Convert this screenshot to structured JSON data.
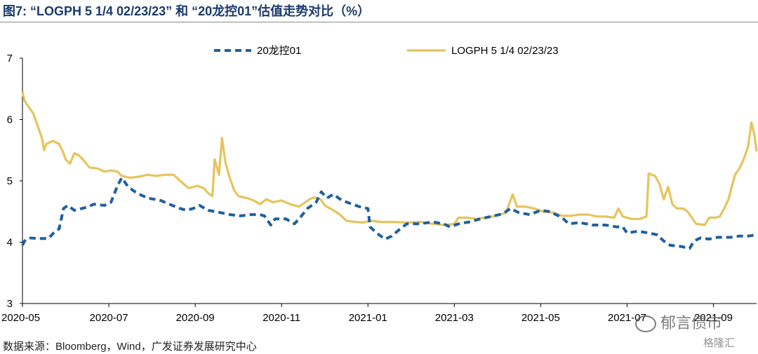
{
  "title": "图7:   “LOGPH 5 1/4 02/23/23” 和 “20龙控01”估值走势对比（%）",
  "source": "数据来源：Bloomberg，Wind，广发证券发展研究中心",
  "watermark": "郁言债市",
  "watermark2": "格隆汇",
  "colors": {
    "series1": "#1f5fa0",
    "series2": "#e6c45c",
    "axis": "#000000",
    "title": "#1a3a6b"
  },
  "chart_data": {
    "type": "line",
    "title": "“LOGPH 5 1/4 02/23/23” 和 “20龙控01”估值走势对比（%）",
    "xlabel": "",
    "ylabel": "",
    "ylim": [
      3,
      7
    ],
    "yticks": [
      "3",
      "4",
      "5",
      "6",
      "7"
    ],
    "xlim": [
      0,
      17
    ],
    "xticks": [
      {
        "label": "2020-05",
        "x": 0
      },
      {
        "label": "2020-07",
        "x": 2
      },
      {
        "label": "2020-09",
        "x": 4
      },
      {
        "label": "2020-11",
        "x": 6
      },
      {
        "label": "2021-01",
        "x": 8
      },
      {
        "label": "2021-03",
        "x": 10
      },
      {
        "label": "2021-05",
        "x": 12
      },
      {
        "label": "2021-07",
        "x": 14
      },
      {
        "label": "2021-09",
        "x": 16
      }
    ],
    "grid": false,
    "legend": "top-center",
    "series": [
      {
        "name": "20龙控01",
        "style": "dashed",
        "points": [
          [
            0.0,
            3.95
          ],
          [
            0.05,
            4.02
          ],
          [
            0.15,
            4.07
          ],
          [
            0.4,
            4.06
          ],
          [
            0.6,
            4.06
          ],
          [
            0.72,
            4.15
          ],
          [
            0.85,
            4.22
          ],
          [
            0.95,
            4.55
          ],
          [
            1.05,
            4.6
          ],
          [
            1.2,
            4.52
          ],
          [
            1.5,
            4.57
          ],
          [
            1.65,
            4.62
          ],
          [
            1.9,
            4.6
          ],
          [
            2.05,
            4.65
          ],
          [
            2.2,
            4.92
          ],
          [
            2.3,
            5.05
          ],
          [
            2.45,
            4.9
          ],
          [
            2.65,
            4.8
          ],
          [
            2.9,
            4.72
          ],
          [
            3.2,
            4.68
          ],
          [
            3.4,
            4.62
          ],
          [
            3.65,
            4.55
          ],
          [
            3.8,
            4.52
          ],
          [
            3.95,
            4.55
          ],
          [
            4.1,
            4.6
          ],
          [
            4.3,
            4.52
          ],
          [
            4.6,
            4.48
          ],
          [
            4.8,
            4.45
          ],
          [
            5.05,
            4.43
          ],
          [
            5.3,
            4.45
          ],
          [
            5.5,
            4.45
          ],
          [
            5.6,
            4.43
          ],
          [
            5.75,
            4.28
          ],
          [
            5.85,
            4.38
          ],
          [
            6.1,
            4.38
          ],
          [
            6.3,
            4.3
          ],
          [
            6.45,
            4.42
          ],
          [
            6.6,
            4.55
          ],
          [
            6.8,
            4.65
          ],
          [
            6.92,
            4.82
          ],
          [
            7.05,
            4.72
          ],
          [
            7.2,
            4.78
          ],
          [
            7.4,
            4.68
          ],
          [
            7.6,
            4.63
          ],
          [
            7.8,
            4.58
          ],
          [
            8.0,
            4.55
          ],
          [
            8.05,
            4.25
          ],
          [
            8.2,
            4.15
          ],
          [
            8.4,
            4.05
          ],
          [
            8.55,
            4.1
          ],
          [
            8.75,
            4.22
          ],
          [
            8.9,
            4.3
          ],
          [
            9.2,
            4.3
          ],
          [
            9.5,
            4.33
          ],
          [
            9.75,
            4.3
          ],
          [
            9.9,
            4.25
          ],
          [
            10.1,
            4.3
          ],
          [
            10.35,
            4.33
          ],
          [
            10.6,
            4.38
          ],
          [
            10.85,
            4.42
          ],
          [
            11.05,
            4.45
          ],
          [
            11.2,
            4.5
          ],
          [
            11.3,
            4.55
          ],
          [
            11.5,
            4.48
          ],
          [
            11.75,
            4.45
          ],
          [
            12.0,
            4.52
          ],
          [
            12.2,
            4.5
          ],
          [
            12.35,
            4.45
          ],
          [
            12.5,
            4.4
          ],
          [
            12.65,
            4.3
          ],
          [
            12.9,
            4.32
          ],
          [
            13.2,
            4.28
          ],
          [
            13.5,
            4.28
          ],
          [
            13.75,
            4.25
          ],
          [
            13.9,
            4.25
          ],
          [
            14.0,
            4.15
          ],
          [
            14.25,
            4.18
          ],
          [
            14.5,
            4.15
          ],
          [
            14.7,
            4.12
          ],
          [
            14.85,
            4.02
          ],
          [
            15.0,
            3.95
          ],
          [
            15.25,
            3.93
          ],
          [
            15.45,
            3.9
          ],
          [
            15.55,
            4.02
          ],
          [
            15.7,
            4.07
          ],
          [
            15.9,
            4.05
          ],
          [
            16.1,
            4.08
          ],
          [
            16.4,
            4.08
          ],
          [
            16.6,
            4.1
          ],
          [
            16.8,
            4.1
          ],
          [
            17.0,
            4.12
          ]
        ]
      },
      {
        "name": "LOGPH 5 1/4 02/23/23",
        "style": "solid",
        "points": [
          [
            0.0,
            6.45
          ],
          [
            0.05,
            6.3
          ],
          [
            0.15,
            6.2
          ],
          [
            0.25,
            6.1
          ],
          [
            0.35,
            5.9
          ],
          [
            0.45,
            5.7
          ],
          [
            0.5,
            5.5
          ],
          [
            0.55,
            5.6
          ],
          [
            0.7,
            5.65
          ],
          [
            0.85,
            5.6
          ],
          [
            0.95,
            5.45
          ],
          [
            1.0,
            5.35
          ],
          [
            1.1,
            5.28
          ],
          [
            1.2,
            5.45
          ],
          [
            1.3,
            5.42
          ],
          [
            1.4,
            5.35
          ],
          [
            1.55,
            5.22
          ],
          [
            1.75,
            5.2
          ],
          [
            1.9,
            5.15
          ],
          [
            2.05,
            5.17
          ],
          [
            2.2,
            5.15
          ],
          [
            2.3,
            5.08
          ],
          [
            2.5,
            5.05
          ],
          [
            2.7,
            5.07
          ],
          [
            2.9,
            5.1
          ],
          [
            3.1,
            5.08
          ],
          [
            3.3,
            5.1
          ],
          [
            3.5,
            5.1
          ],
          [
            3.65,
            5.0
          ],
          [
            3.85,
            4.88
          ],
          [
            4.05,
            4.92
          ],
          [
            4.2,
            4.88
          ],
          [
            4.3,
            4.8
          ],
          [
            4.4,
            4.75
          ],
          [
            4.45,
            5.35
          ],
          [
            4.55,
            5.1
          ],
          [
            4.62,
            5.7
          ],
          [
            4.7,
            5.3
          ],
          [
            4.8,
            5.05
          ],
          [
            4.9,
            4.85
          ],
          [
            5.0,
            4.75
          ],
          [
            5.2,
            4.72
          ],
          [
            5.35,
            4.68
          ],
          [
            5.5,
            4.62
          ],
          [
            5.65,
            4.7
          ],
          [
            5.8,
            4.65
          ],
          [
            6.0,
            4.68
          ],
          [
            6.2,
            4.62
          ],
          [
            6.4,
            4.58
          ],
          [
            6.55,
            4.65
          ],
          [
            6.65,
            4.7
          ],
          [
            6.75,
            4.73
          ],
          [
            6.9,
            4.7
          ],
          [
            7.0,
            4.6
          ],
          [
            7.2,
            4.52
          ],
          [
            7.35,
            4.45
          ],
          [
            7.5,
            4.35
          ],
          [
            7.7,
            4.33
          ],
          [
            7.9,
            4.32
          ],
          [
            8.05,
            4.35
          ],
          [
            8.3,
            4.33
          ],
          [
            8.6,
            4.33
          ],
          [
            8.9,
            4.32
          ],
          [
            9.2,
            4.33
          ],
          [
            9.5,
            4.3
          ],
          [
            9.8,
            4.28
          ],
          [
            10.0,
            4.3
          ],
          [
            10.1,
            4.4
          ],
          [
            10.3,
            4.4
          ],
          [
            10.5,
            4.38
          ],
          [
            10.7,
            4.4
          ],
          [
            10.9,
            4.42
          ],
          [
            11.05,
            4.45
          ],
          [
            11.2,
            4.48
          ],
          [
            11.35,
            4.78
          ],
          [
            11.45,
            4.58
          ],
          [
            11.65,
            4.58
          ],
          [
            11.85,
            4.55
          ],
          [
            12.05,
            4.5
          ],
          [
            12.3,
            4.48
          ],
          [
            12.5,
            4.43
          ],
          [
            12.7,
            4.43
          ],
          [
            12.9,
            4.45
          ],
          [
            13.1,
            4.45
          ],
          [
            13.3,
            4.42
          ],
          [
            13.5,
            4.42
          ],
          [
            13.7,
            4.4
          ],
          [
            13.8,
            4.55
          ],
          [
            13.9,
            4.42
          ],
          [
            14.1,
            4.38
          ],
          [
            14.3,
            4.38
          ],
          [
            14.45,
            4.42
          ],
          [
            14.5,
            5.12
          ],
          [
            14.65,
            5.08
          ],
          [
            14.75,
            4.95
          ],
          [
            14.85,
            4.7
          ],
          [
            14.95,
            4.9
          ],
          [
            15.05,
            4.62
          ],
          [
            15.15,
            4.55
          ],
          [
            15.3,
            4.55
          ],
          [
            15.4,
            4.5
          ],
          [
            15.5,
            4.4
          ],
          [
            15.6,
            4.3
          ],
          [
            15.8,
            4.28
          ],
          [
            15.9,
            4.4
          ],
          [
            16.05,
            4.4
          ],
          [
            16.15,
            4.42
          ],
          [
            16.25,
            4.55
          ],
          [
            16.35,
            4.7
          ],
          [
            16.5,
            5.1
          ],
          [
            16.6,
            5.2
          ],
          [
            16.7,
            5.35
          ],
          [
            16.8,
            5.55
          ],
          [
            16.88,
            5.95
          ],
          [
            16.95,
            5.75
          ],
          [
            17.0,
            5.48
          ]
        ]
      }
    ]
  }
}
